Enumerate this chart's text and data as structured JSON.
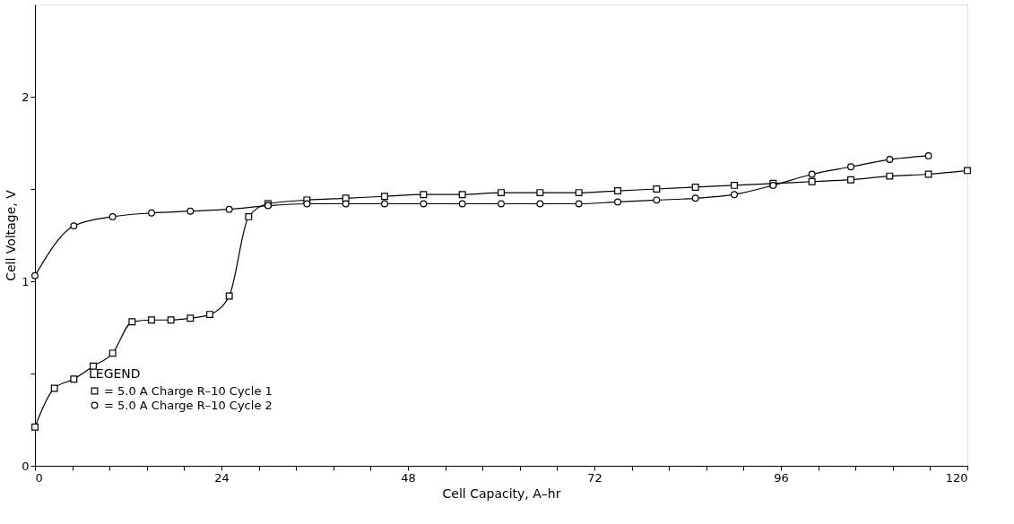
{
  "chart_data": {
    "type": "line",
    "xlabel": "Cell Capacity, A–hr",
    "ylabel": "Cell Voltage, V",
    "legend_title": "LEGEND",
    "xlim": [
      0,
      120
    ],
    "ylim": [
      0,
      2.5
    ],
    "xticks": [
      0,
      {
        "value": 4.8,
        "label": null
      },
      {
        "value": 9.6,
        "label": null
      },
      {
        "value": 14.4,
        "label": null
      },
      {
        "value": 19.2,
        "label": null
      },
      24,
      {
        "value": 28.8,
        "label": null
      },
      {
        "value": 33.6,
        "label": null
      },
      {
        "value": 38.4,
        "label": null
      },
      {
        "value": 43.2,
        "label": null
      },
      48,
      {
        "value": 52.8,
        "label": null
      },
      {
        "value": 57.6,
        "label": null
      },
      {
        "value": 62.4,
        "label": null
      },
      {
        "value": 67.2,
        "label": null
      },
      72,
      {
        "value": 76.8,
        "label": null
      },
      {
        "value": 81.6,
        "label": null
      },
      {
        "value": 86.4,
        "label": null
      },
      {
        "value": 91.2,
        "label": null
      },
      96,
      {
        "value": 100.8,
        "label": null
      },
      {
        "value": 105.6,
        "label": null
      },
      {
        "value": 110.4,
        "label": null
      },
      {
        "value": 115.2,
        "label": null
      },
      120
    ],
    "yticks": [
      0,
      {
        "value": 0.5,
        "label": null
      },
      1,
      {
        "value": 1.5,
        "label": null
      },
      2
    ],
    "grid": false,
    "legend": "bottom left",
    "series": [
      {
        "name": "= 5.0 A Charge R–10 Cycle 1",
        "color": "#000000",
        "marker": "square",
        "x": [
          0,
          2.5,
          5,
          7.5,
          10,
          12.5,
          15,
          17.5,
          20,
          22.5,
          25,
          27.5,
          30,
          35,
          40,
          45,
          50,
          55,
          60,
          65,
          70,
          75,
          80,
          85,
          90,
          95,
          100,
          105,
          110,
          115,
          120
        ],
        "values": [
          0.21,
          0.42,
          0.47,
          0.54,
          0.61,
          0.78,
          0.79,
          0.79,
          0.8,
          0.82,
          0.92,
          1.35,
          1.42,
          1.44,
          1.45,
          1.46,
          1.47,
          1.47,
          1.48,
          1.48,
          1.48,
          1.49,
          1.5,
          1.51,
          1.52,
          1.53,
          1.54,
          1.55,
          1.57,
          1.58,
          1.6
        ]
      },
      {
        "name": "= 5.0 A Charge R–10 Cycle 2",
        "color": "#000000",
        "marker": "circle",
        "x": [
          0,
          5,
          10,
          15,
          20,
          25,
          30,
          35,
          40,
          45,
          50,
          55,
          60,
          65,
          70,
          75,
          80,
          85,
          90,
          95,
          100,
          105,
          110,
          115
        ],
        "values": [
          1.03,
          1.3,
          1.35,
          1.37,
          1.38,
          1.39,
          1.41,
          1.42,
          1.42,
          1.42,
          1.42,
          1.42,
          1.42,
          1.42,
          1.42,
          1.43,
          1.44,
          1.45,
          1.47,
          1.52,
          1.58,
          1.62,
          1.66,
          1.68
        ]
      }
    ]
  }
}
